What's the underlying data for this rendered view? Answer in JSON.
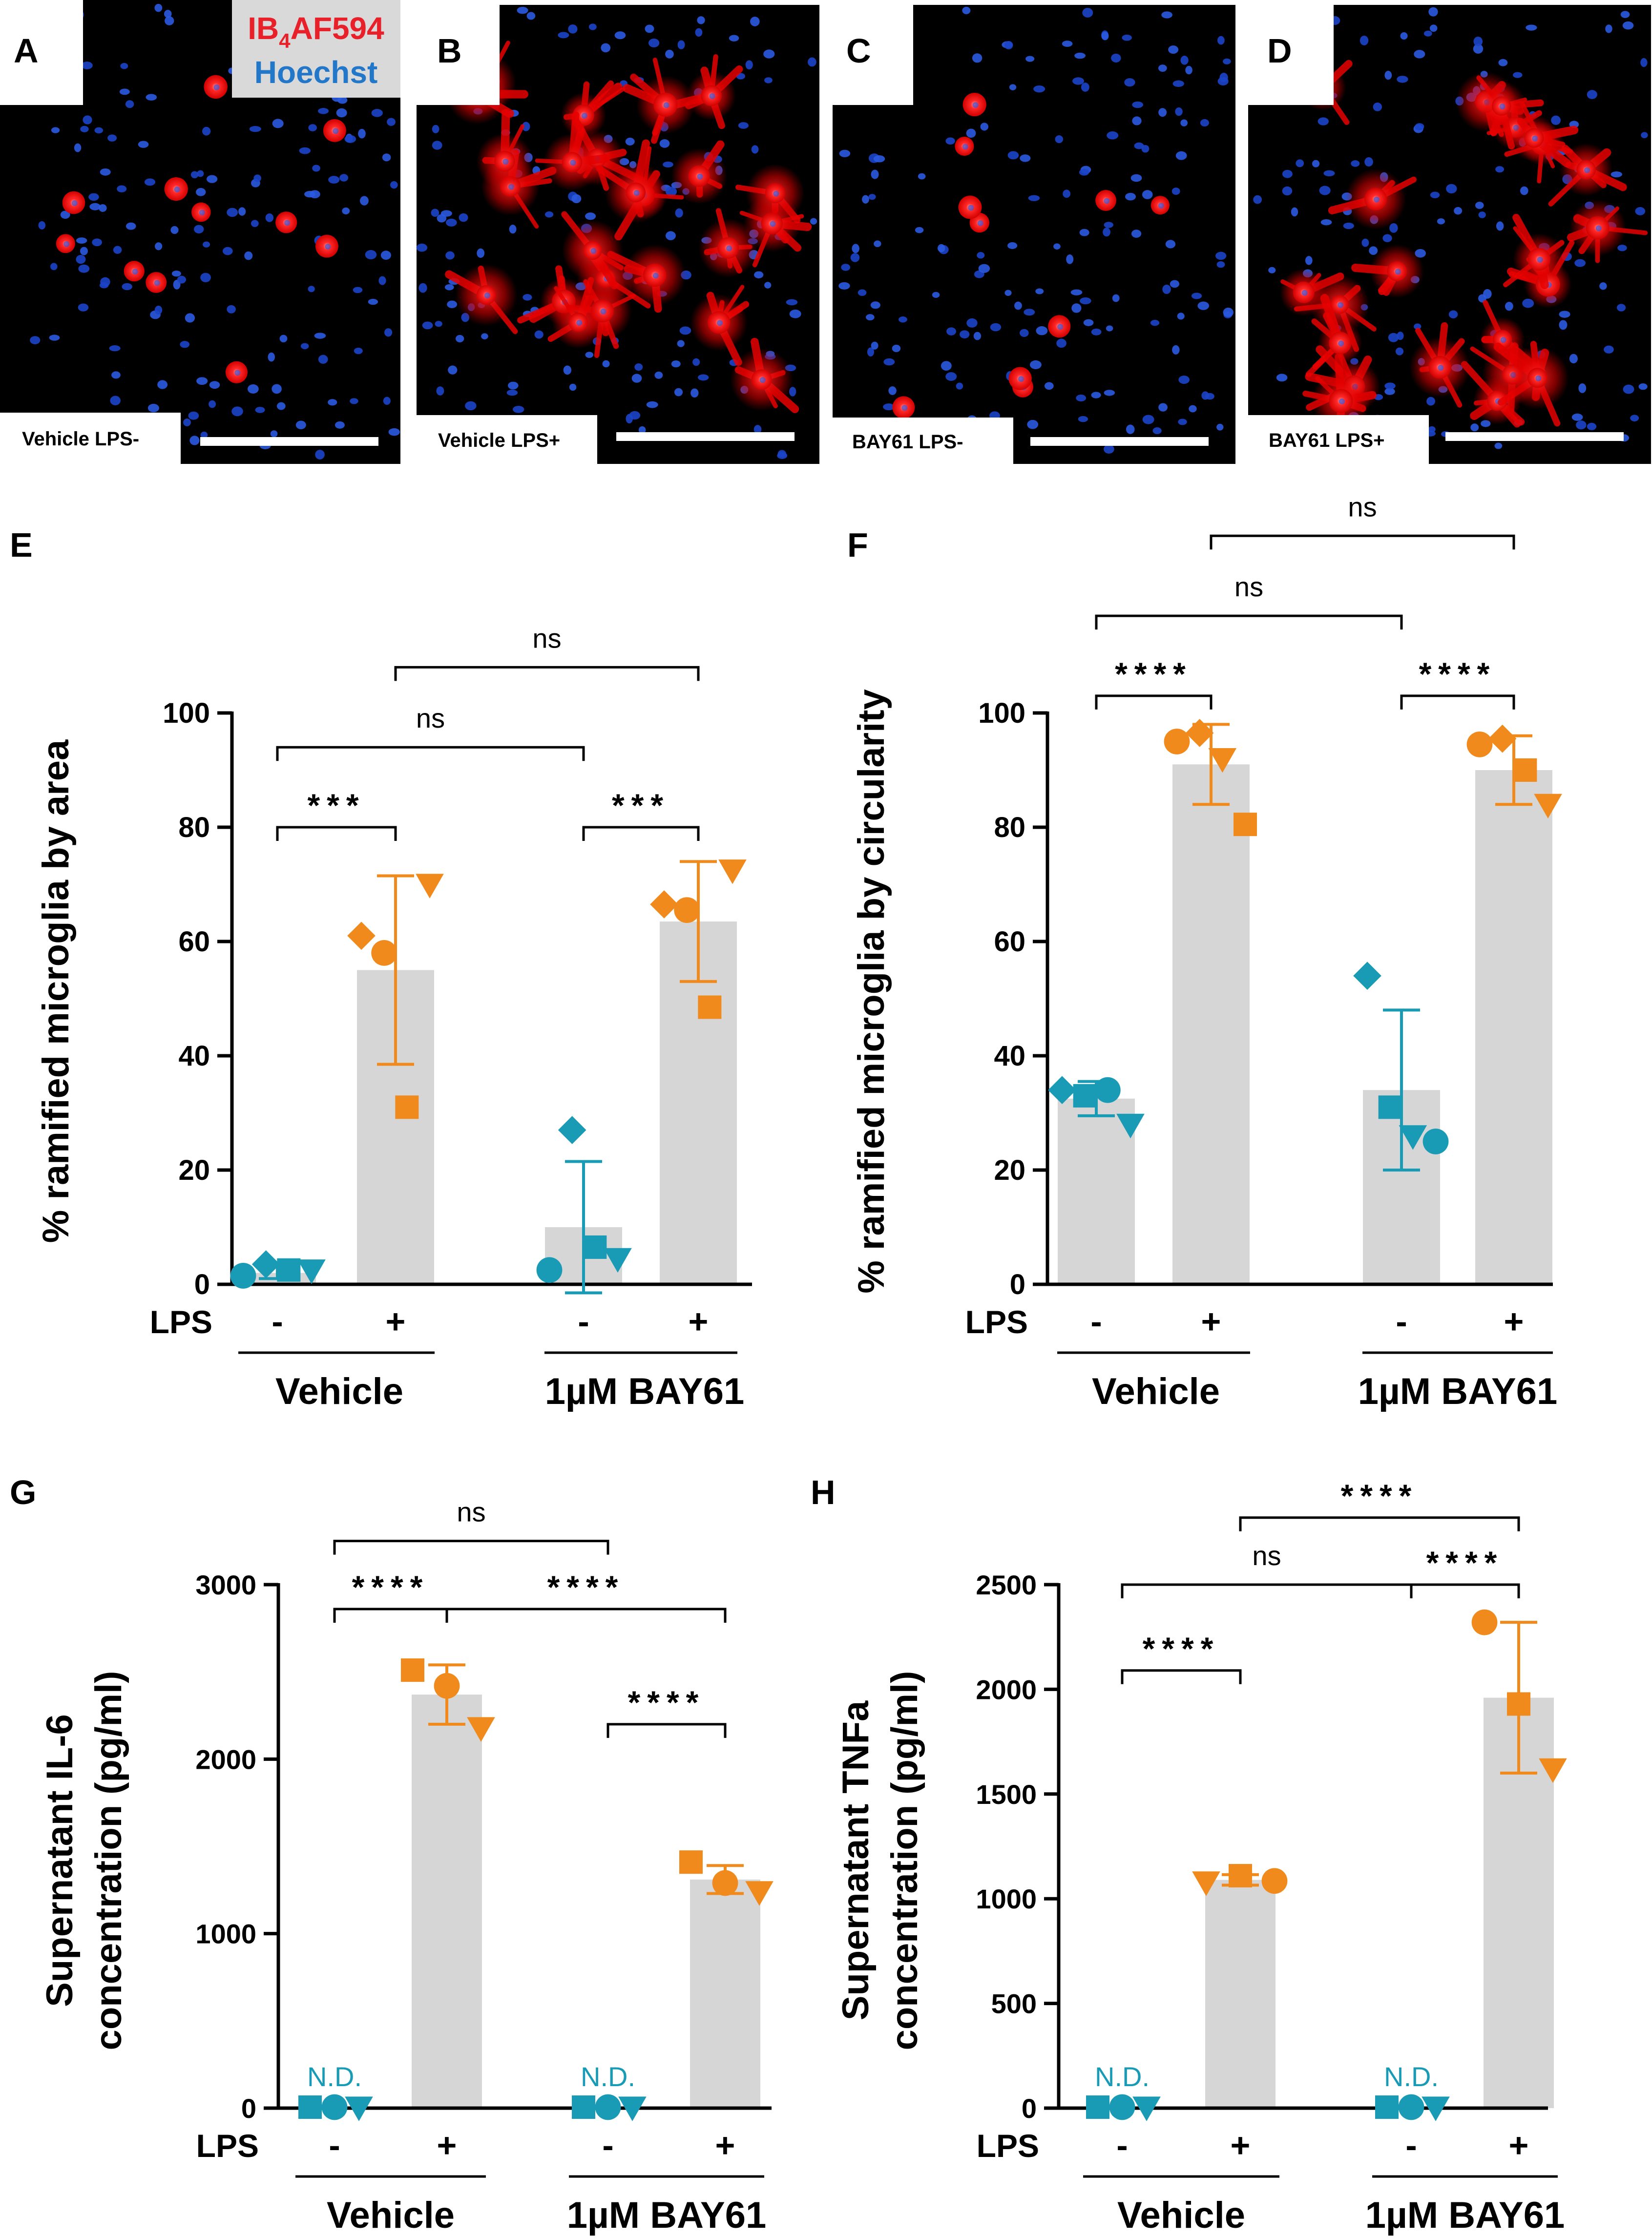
{
  "colors": {
    "lps_neg": "#1a9bb5",
    "lps_pos": "#f18a1c",
    "bar": "#d6d6d6",
    "red_stain": "#ff2020",
    "blue_stain": "#1c4fd6",
    "legend_red": "#e8202a",
    "legend_blue": "#2377c9"
  },
  "micrographs": [
    {
      "label": "A",
      "caption": "Vehicle LPS-"
    },
    {
      "label": "B",
      "caption": "Vehicle LPS+"
    },
    {
      "label": "C",
      "caption": "BAY61 LPS-"
    },
    {
      "label": "D",
      "caption": "BAY61 LPS+"
    }
  ],
  "stain_legend": {
    "line1_main": "IB",
    "line1_sub": "4",
    "line1_rest": "AF594",
    "line2": "Hoechst"
  },
  "chart_data": [
    {
      "panel": "E",
      "type": "bar",
      "ylabel": "% ramified microglia by area",
      "ylim": [
        0,
        100
      ],
      "yticks": [
        "0",
        "20",
        "40",
        "60",
        "80",
        "100"
      ],
      "lps_label": "LPS",
      "categories": [
        "-",
        "+",
        "-",
        "+"
      ],
      "groups": [
        "Vehicle",
        "1µM BAY61"
      ],
      "bars": [
        {
          "lps": "-",
          "mean": 2.0,
          "sd": 1.0,
          "points": [
            {
              "shape": "circle",
              "y": 1.5
            },
            {
              "shape": "diamond",
              "y": 3.5
            },
            {
              "shape": "square",
              "y": 2.5
            },
            {
              "shape": "triangle",
              "y": 2.5
            }
          ]
        },
        {
          "lps": "+",
          "mean": 55,
          "sd": 16.5,
          "points": [
            {
              "shape": "diamond",
              "y": 61
            },
            {
              "shape": "circle",
              "y": 58
            },
            {
              "shape": "square",
              "y": 31
            },
            {
              "shape": "triangle",
              "y": 70
            }
          ]
        },
        {
          "lps": "-",
          "mean": 10,
          "sd": 11.5,
          "points": [
            {
              "shape": "circle",
              "y": 2.5
            },
            {
              "shape": "diamond",
              "y": 27
            },
            {
              "shape": "square",
              "y": 6.5
            },
            {
              "shape": "triangle",
              "y": 4.5
            }
          ]
        },
        {
          "lps": "+",
          "mean": 63.5,
          "sd": 10.5,
          "points": [
            {
              "shape": "diamond",
              "y": 66.5
            },
            {
              "shape": "circle",
              "y": 65.5
            },
            {
              "shape": "square",
              "y": 48.5
            },
            {
              "shape": "triangle",
              "y": 72.5
            }
          ]
        }
      ],
      "comparisons": [
        {
          "from": 0,
          "to": 1,
          "y": 80,
          "label": "***"
        },
        {
          "from": 2,
          "to": 3,
          "y": 80,
          "label": "***"
        },
        {
          "from": 0,
          "to": 2,
          "y": 94,
          "label": "ns"
        },
        {
          "from": 1,
          "to": 3,
          "y": 108,
          "label": "ns"
        }
      ]
    },
    {
      "panel": "F",
      "type": "bar",
      "ylabel": "% ramified microglia by circularity",
      "ylim": [
        0,
        100
      ],
      "yticks": [
        "0",
        "20",
        "40",
        "60",
        "80",
        "100"
      ],
      "lps_label": "LPS",
      "categories": [
        "-",
        "+",
        "-",
        "+"
      ],
      "groups": [
        "Vehicle",
        "1µM BAY61"
      ],
      "bars": [
        {
          "lps": "-",
          "mean": 32.5,
          "sd": 3.0,
          "points": [
            {
              "shape": "diamond",
              "y": 34
            },
            {
              "shape": "square",
              "y": 33
            },
            {
              "shape": "circle",
              "y": 34
            },
            {
              "shape": "triangle",
              "y": 28
            }
          ]
        },
        {
          "lps": "+",
          "mean": 91,
          "sd": 7.0,
          "points": [
            {
              "shape": "circle",
              "y": 95
            },
            {
              "shape": "diamond",
              "y": 96.5
            },
            {
              "shape": "triangle",
              "y": 92
            },
            {
              "shape": "square",
              "y": 80.5
            }
          ]
        },
        {
          "lps": "-",
          "mean": 34,
          "sd": 14,
          "points": [
            {
              "shape": "diamond",
              "y": 54
            },
            {
              "shape": "square",
              "y": 31
            },
            {
              "shape": "triangle",
              "y": 26
            },
            {
              "shape": "circle",
              "y": 25
            }
          ]
        },
        {
          "lps": "+",
          "mean": 90,
          "sd": 6.0,
          "points": [
            {
              "shape": "circle",
              "y": 94.5
            },
            {
              "shape": "diamond",
              "y": 95.5
            },
            {
              "shape": "square",
              "y": 90
            },
            {
              "shape": "triangle",
              "y": 84
            }
          ]
        }
      ],
      "comparisons": [
        {
          "from": 0,
          "to": 1,
          "y": 103,
          "label": "****"
        },
        {
          "from": 2,
          "to": 3,
          "y": 103,
          "label": "****"
        },
        {
          "from": 0,
          "to": 2,
          "y": 117,
          "label": "ns"
        },
        {
          "from": 1,
          "to": 3,
          "y": 131,
          "label": "ns"
        }
      ]
    },
    {
      "panel": "G",
      "type": "bar",
      "ylabel": "Supernatant IL-6",
      "ylabel2": "concentration (pg/ml)",
      "ylim": [
        0,
        3000
      ],
      "yticks": [
        "0",
        "1000",
        "2000",
        "3000"
      ],
      "lps_label": "LPS",
      "categories": [
        "-",
        "+",
        "-",
        "+"
      ],
      "groups": [
        "Vehicle",
        "1µM BAY61"
      ],
      "nd_label": "N.D.",
      "bars": [
        {
          "lps": "-",
          "mean": 0,
          "sd": 0,
          "nd": true,
          "points": [
            {
              "shape": "square",
              "y": 0
            },
            {
              "shape": "circle",
              "y": 0
            },
            {
              "shape": "triangle",
              "y": 0
            }
          ]
        },
        {
          "lps": "+",
          "mean": 2370,
          "sd": 170,
          "points": [
            {
              "shape": "square",
              "y": 2510
            },
            {
              "shape": "circle",
              "y": 2420
            },
            {
              "shape": "triangle",
              "y": 2180
            }
          ]
        },
        {
          "lps": "-",
          "mean": 0,
          "sd": 0,
          "nd": true,
          "points": [
            {
              "shape": "square",
              "y": 0
            },
            {
              "shape": "circle",
              "y": 0
            },
            {
              "shape": "triangle",
              "y": 0
            }
          ]
        },
        {
          "lps": "+",
          "mean": 1310,
          "sd": 80,
          "points": [
            {
              "shape": "square",
              "y": 1410
            },
            {
              "shape": "circle",
              "y": 1290
            },
            {
              "shape": "triangle",
              "y": 1240
            }
          ]
        }
      ],
      "comparisons": [
        {
          "from": 0,
          "to": 1,
          "y": 2860,
          "label": "****"
        },
        {
          "from": 1,
          "to": 3,
          "y": 2860,
          "label": "****"
        },
        {
          "from": 2,
          "to": 3,
          "y": 2200,
          "label": "****"
        },
        {
          "from": 0,
          "to": 2,
          "y": 3250,
          "label": "ns"
        }
      ]
    },
    {
      "panel": "H",
      "type": "bar",
      "ylabel": "Supernatant TNFa",
      "ylabel2": "concentration (pg/ml)",
      "ylim": [
        0,
        2500
      ],
      "yticks": [
        "0",
        "500",
        "1000",
        "1500",
        "2000",
        "2500"
      ],
      "lps_label": "LPS",
      "categories": [
        "-",
        "+",
        "-",
        "+"
      ],
      "groups": [
        "Vehicle",
        "1µM BAY61"
      ],
      "nd_label": "N.D.",
      "bars": [
        {
          "lps": "-",
          "mean": 0,
          "sd": 0,
          "nd": true,
          "points": [
            {
              "shape": "square",
              "y": 0
            },
            {
              "shape": "circle",
              "y": 0
            },
            {
              "shape": "triangle",
              "y": 0
            }
          ]
        },
        {
          "lps": "+",
          "mean": 1090,
          "sd": 25,
          "points": [
            {
              "shape": "triangle",
              "y": 1080
            },
            {
              "shape": "square",
              "y": 1110
            },
            {
              "shape": "circle",
              "y": 1085
            }
          ]
        },
        {
          "lps": "-",
          "mean": 0,
          "sd": 0,
          "nd": true,
          "points": [
            {
              "shape": "square",
              "y": 0
            },
            {
              "shape": "circle",
              "y": 0
            },
            {
              "shape": "triangle",
              "y": 0
            }
          ]
        },
        {
          "lps": "+",
          "mean": 1960,
          "sd": 360,
          "points": [
            {
              "shape": "circle",
              "y": 2320
            },
            {
              "shape": "square",
              "y": 1930
            },
            {
              "shape": "triangle",
              "y": 1620
            }
          ]
        }
      ],
      "comparisons": [
        {
          "from": 0,
          "to": 1,
          "y": 2090,
          "label": "****"
        },
        {
          "from": 2,
          "to": 3,
          "y": 2500,
          "label": "****"
        },
        {
          "from": 0,
          "to": 2,
          "y": 2500,
          "label": "ns"
        },
        {
          "from": 1,
          "to": 3,
          "y": 2820,
          "label": "****"
        }
      ]
    }
  ]
}
